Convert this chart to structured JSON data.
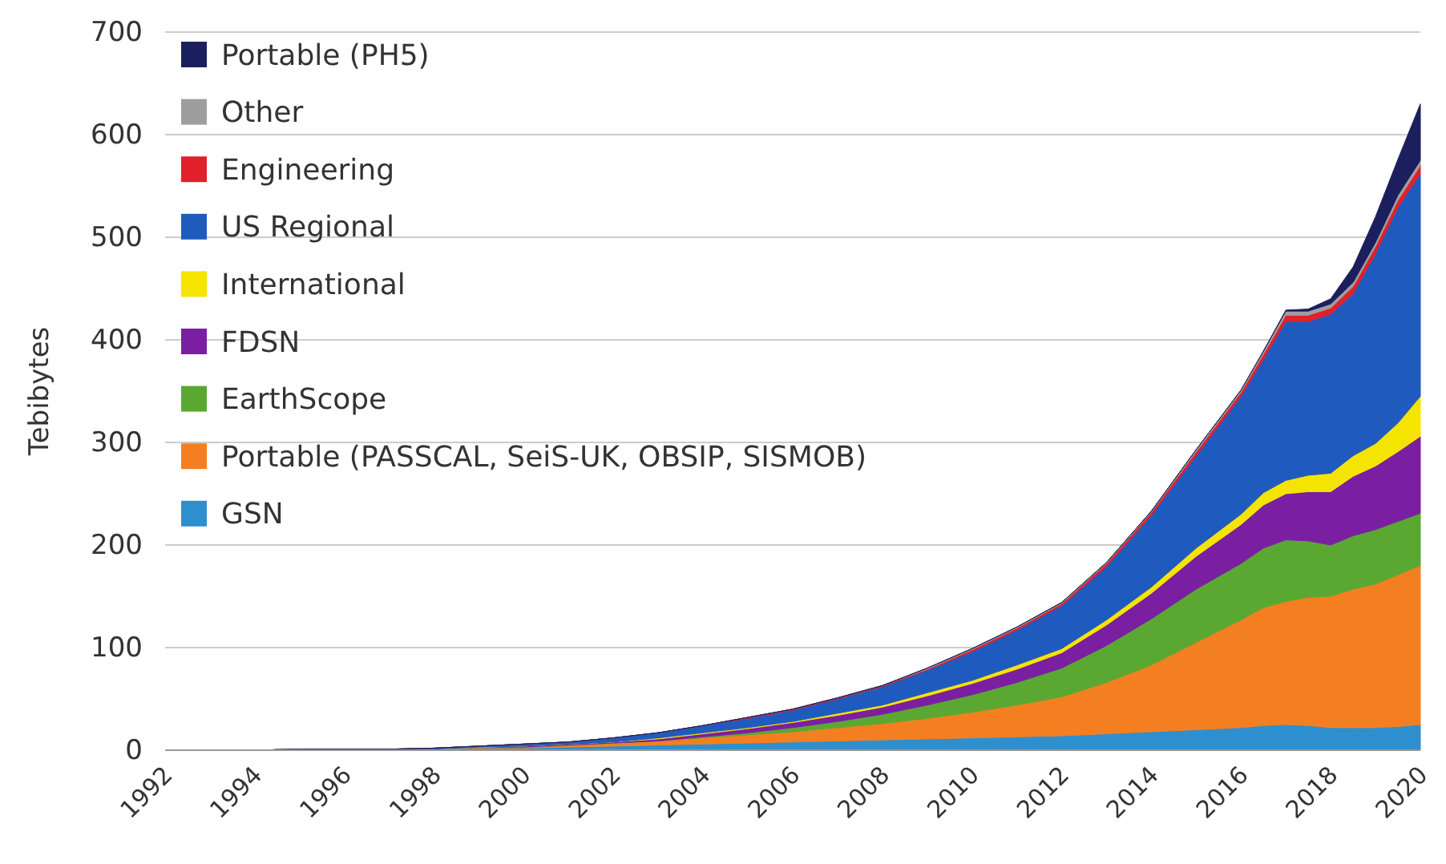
{
  "chart_data": {
    "type": "area",
    "stacked": true,
    "ylabel": "Tebibytes",
    "x": [
      1992,
      1993,
      1994,
      1995,
      1996,
      1997,
      1998,
      1999,
      2000,
      2001,
      2002,
      2003,
      2004,
      2005,
      2006,
      2007,
      2008,
      2009,
      2010,
      2011,
      2012,
      2013,
      2014,
      2015,
      2016,
      2016.5,
      2017,
      2017.5,
      2018,
      2018.5,
      2019,
      2019.5,
      2020
    ],
    "series": [
      {
        "name": "GSN",
        "color": "#2e8fcf",
        "values": [
          0,
          0,
          0,
          1,
          1,
          1,
          1,
          2,
          2,
          3,
          4,
          5,
          6,
          7,
          8,
          9,
          10,
          11,
          12,
          13,
          14,
          16,
          18,
          20,
          22,
          24,
          25,
          24,
          22,
          22,
          22,
          23,
          25
        ]
      },
      {
        "name": "Portable (PASSCAL, SeiS-UK, OBSIP, SISMOB)",
        "color": "#f47f20",
        "values": [
          0,
          0,
          0,
          0,
          0,
          0,
          0,
          1,
          1,
          2,
          3,
          4,
          6,
          8,
          10,
          13,
          16,
          20,
          25,
          31,
          38,
          50,
          65,
          85,
          105,
          115,
          120,
          125,
          128,
          135,
          140,
          148,
          155
        ]
      },
      {
        "name": "EarthScope",
        "color": "#5aa832",
        "values": [
          0,
          0,
          0,
          0,
          0,
          0,
          0,
          0,
          0,
          0,
          0,
          0,
          1,
          2,
          4,
          6,
          9,
          13,
          17,
          22,
          28,
          36,
          45,
          52,
          55,
          58,
          60,
          55,
          50,
          52,
          53,
          52,
          51
        ]
      },
      {
        "name": "FDSN",
        "color": "#7b1fa2",
        "values": [
          0,
          0,
          0,
          0,
          0,
          0,
          0,
          0,
          1,
          1,
          1,
          2,
          3,
          4,
          5,
          6,
          7,
          9,
          11,
          13,
          15,
          20,
          25,
          32,
          38,
          42,
          45,
          48,
          52,
          58,
          62,
          68,
          75
        ]
      },
      {
        "name": "International",
        "color": "#f5e400",
        "values": [
          0,
          0,
          0,
          0,
          0,
          0,
          0,
          0,
          0,
          0,
          0,
          1,
          1,
          1,
          1,
          2,
          2,
          3,
          3,
          4,
          4,
          5,
          6,
          8,
          10,
          12,
          13,
          16,
          18,
          20,
          22,
          28,
          39
        ]
      },
      {
        "name": "US Regional",
        "color": "#1f5bbf",
        "values": [
          0,
          0,
          0,
          0,
          0,
          0,
          1,
          1,
          2,
          2,
          4,
          5,
          7,
          9,
          11,
          14,
          18,
          22,
          28,
          34,
          42,
          52,
          70,
          90,
          115,
          130,
          155,
          150,
          155,
          158,
          185,
          210,
          217
        ]
      },
      {
        "name": "Engineering",
        "color": "#e0202b",
        "values": [
          0,
          0,
          0,
          0,
          0,
          0,
          0,
          0,
          0,
          0,
          0,
          0,
          0,
          1,
          1,
          1,
          1,
          1,
          2,
          2,
          2,
          3,
          3,
          4,
          4,
          5,
          6,
          6,
          6,
          7,
          7,
          7,
          8
        ]
      },
      {
        "name": "Other",
        "color": "#9e9e9e",
        "values": [
          0,
          0,
          0,
          0,
          0,
          0,
          0,
          0,
          0,
          0,
          0,
          0,
          0,
          0,
          0,
          0,
          0,
          1,
          1,
          1,
          1,
          1,
          1,
          2,
          2,
          3,
          4,
          4,
          4,
          4,
          4,
          5,
          5
        ]
      },
      {
        "name": "Portable (PH5)",
        "color": "#1c1f5e",
        "values": [
          0,
          0,
          0,
          0,
          0,
          0,
          0,
          0,
          0,
          0,
          0,
          0,
          0,
          0,
          0,
          0,
          0,
          0,
          0,
          0,
          0,
          0,
          0,
          0,
          0,
          0,
          1,
          2,
          5,
          15,
          25,
          35,
          55
        ]
      }
    ],
    "xlim": [
      1992,
      2020
    ],
    "xticks": [
      1992,
      1994,
      1996,
      1998,
      2000,
      2002,
      2004,
      2006,
      2008,
      2010,
      2012,
      2014,
      2016,
      2018,
      2020
    ],
    "ylim": [
      0,
      700
    ],
    "yticks": [
      0,
      100,
      200,
      300,
      400,
      500,
      600,
      700
    ],
    "grid": "y",
    "legend": "top left"
  }
}
